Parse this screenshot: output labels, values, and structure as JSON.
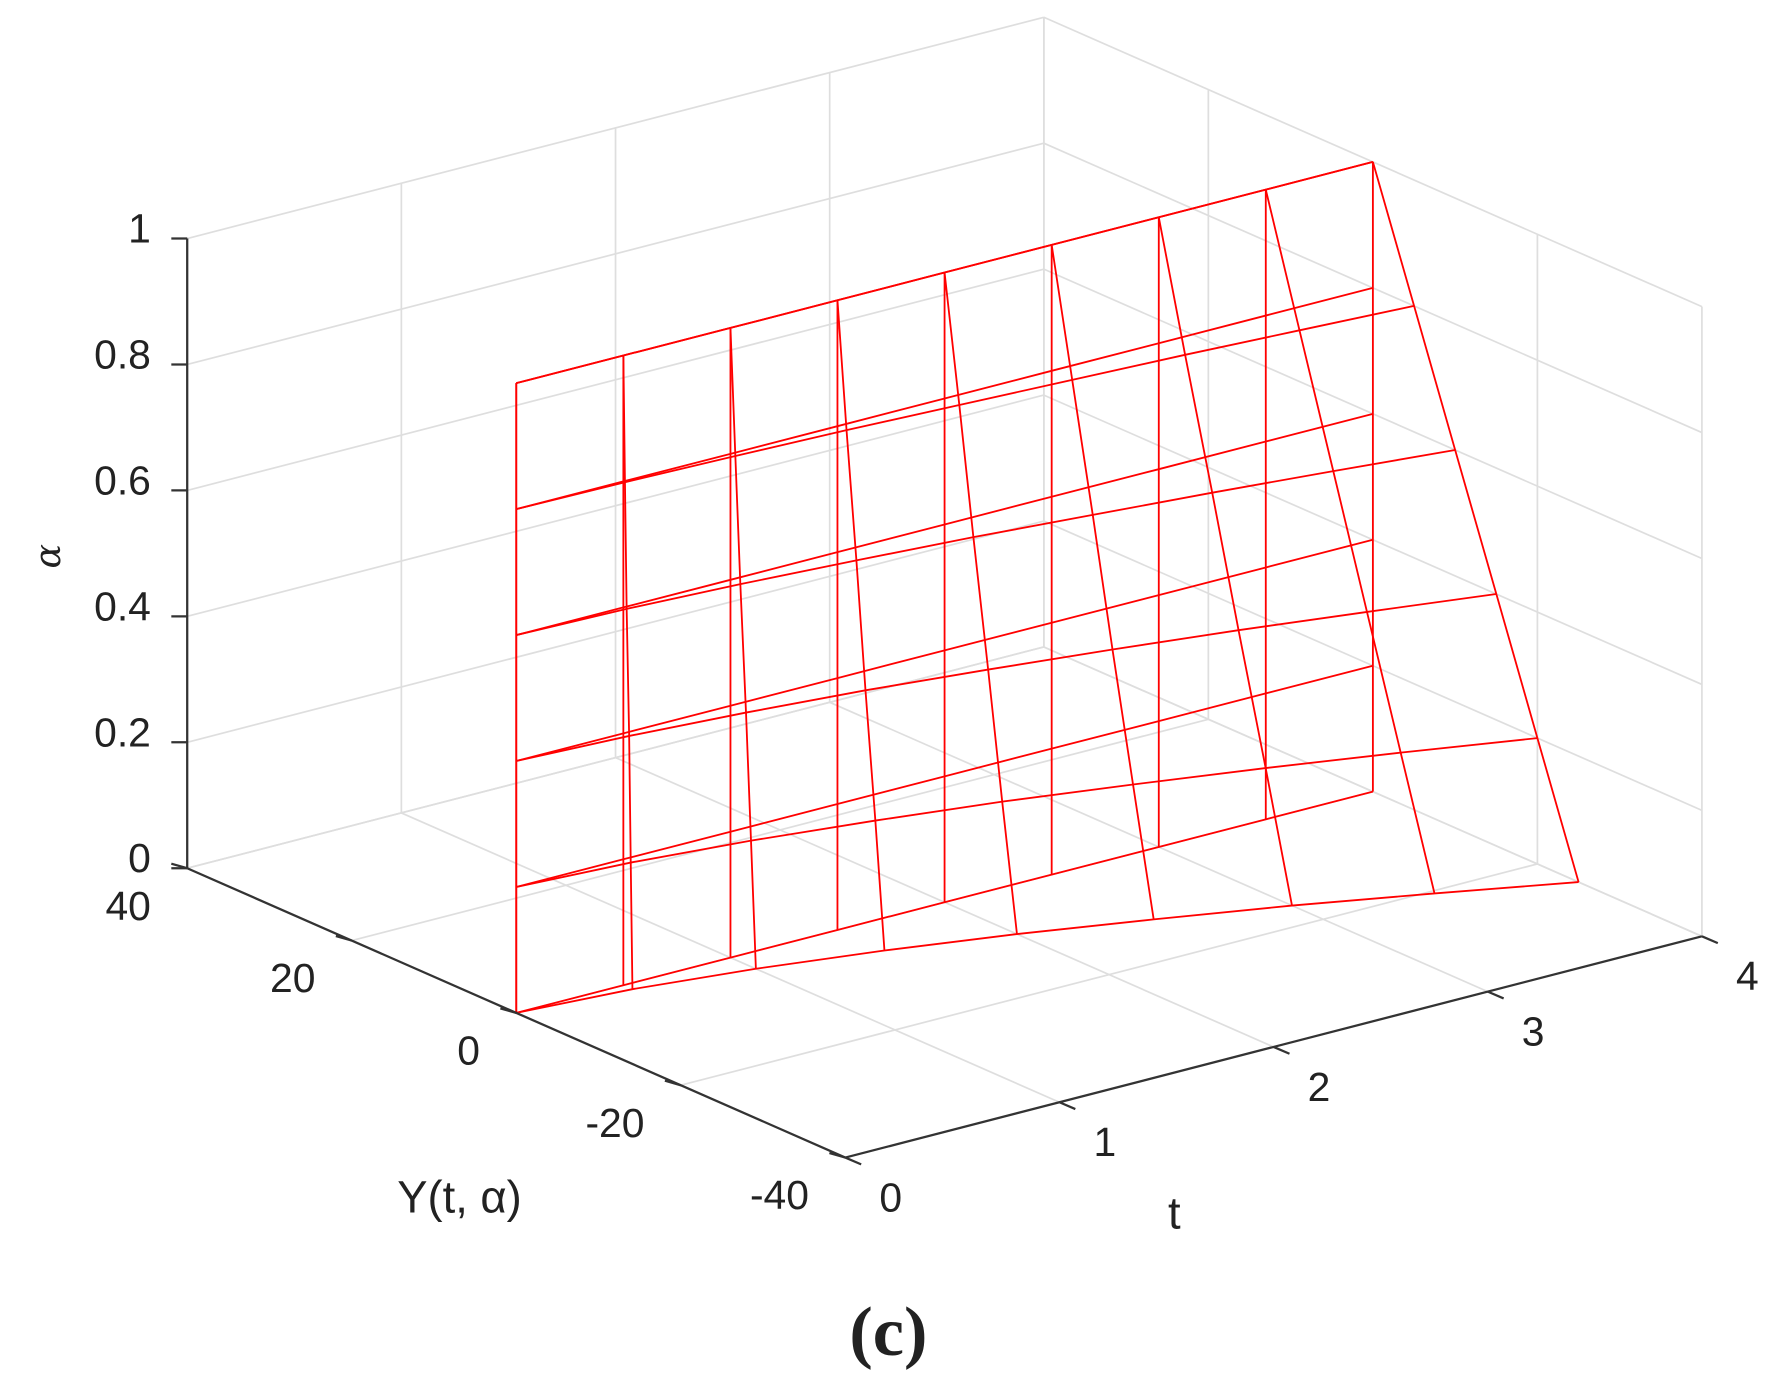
{
  "chart_data": {
    "type": "mesh3d",
    "xlabel": "t",
    "ylabel": "Y(t, α)",
    "zlabel": "α",
    "caption": "(c)",
    "xlim": [
      0,
      4
    ],
    "ylim": [
      -40,
      40
    ],
    "zlim": [
      0,
      1
    ],
    "xticks": [
      0,
      1,
      2,
      3,
      4
    ],
    "yticks": [
      -40,
      -20,
      0,
      20,
      40
    ],
    "zticks": [
      0,
      0.2,
      0.4,
      0.6,
      0.8,
      1
    ],
    "grid": true,
    "x": [
      0,
      0.5,
      1,
      1.5,
      2,
      2.5,
      3,
      3.5,
      4
    ],
    "z": [
      0,
      0.2,
      0.4,
      0.6,
      0.8,
      1
    ],
    "series": [
      {
        "color": "#ff0000",
        "values": [
          [
            0,
            -1.1,
            -3.1,
            -5.7,
            -8.8,
            -12.4,
            -16.2,
            -20.5,
            -25
          ],
          [
            0,
            -0.9,
            -2.5,
            -4.6,
            -7.0,
            -9.9,
            -13.0,
            -16.4,
            -20
          ],
          [
            0,
            -0.7,
            -1.9,
            -3.4,
            -5.3,
            -7.4,
            -9.7,
            -12.3,
            -15
          ],
          [
            0,
            -0.4,
            -1.2,
            -2.3,
            -3.5,
            -5.0,
            -6.5,
            -8.2,
            -10
          ],
          [
            0,
            -0.2,
            -0.6,
            -1.1,
            -1.8,
            -2.5,
            -3.2,
            -4.1,
            -5
          ],
          [
            0,
            0,
            0,
            0,
            0,
            0,
            0,
            0,
            0
          ]
        ]
      },
      {
        "color": "#ff0000",
        "values": [
          [
            0,
            0,
            0,
            0,
            0,
            0,
            0,
            0,
            0
          ],
          [
            0,
            0,
            0,
            0,
            0,
            0,
            0,
            0,
            0
          ],
          [
            0,
            0,
            0,
            0,
            0,
            0,
            0,
            0,
            0
          ],
          [
            0,
            0,
            0,
            0,
            0,
            0,
            0,
            0,
            0
          ],
          [
            0,
            0,
            0,
            0,
            0,
            0,
            0,
            0,
            0
          ],
          [
            0,
            0,
            0,
            0,
            0,
            0,
            0,
            0,
            0
          ]
        ]
      }
    ]
  }
}
